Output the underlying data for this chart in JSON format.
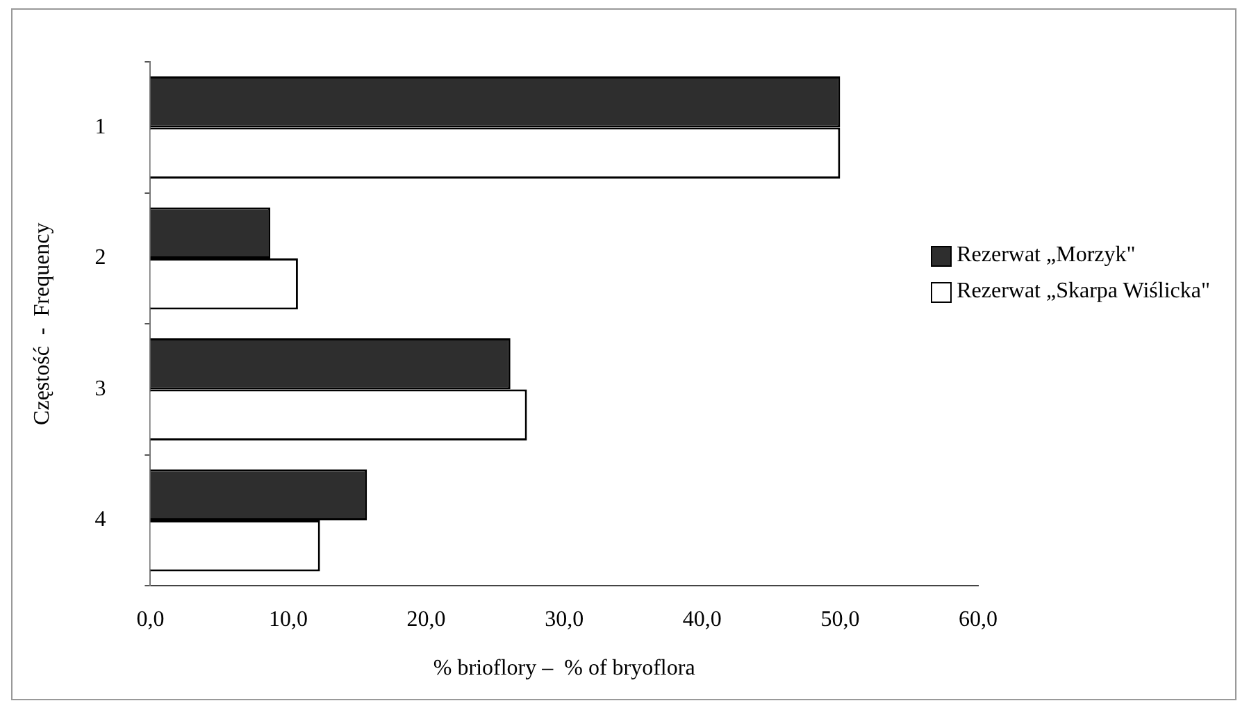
{
  "chart_data": {
    "type": "bar",
    "orientation": "horizontal",
    "xlabel": "% brioflory –  % of bryoflora",
    "ylabel": "Częstość  -  Frequency",
    "categories": [
      "1",
      "2",
      "3",
      "4"
    ],
    "series": [
      {
        "name": "Rezerwat „Morzyk\"",
        "color": "#2e2e2e",
        "values": [
          50.0,
          8.7,
          26.1,
          15.7
        ]
      },
      {
        "name": "Rezerwat „Skarpa Wiślicka\"",
        "color": "#ffffff",
        "values": [
          50.0,
          10.7,
          27.3,
          12.3
        ]
      }
    ],
    "xlim": [
      0,
      60
    ],
    "xticks": [
      {
        "value": 0,
        "label": "0,0"
      },
      {
        "value": 10,
        "label": "10,0"
      },
      {
        "value": 20,
        "label": "20,0"
      },
      {
        "value": 30,
        "label": "30,0"
      },
      {
        "value": 40,
        "label": "40,0"
      },
      {
        "value": 50,
        "label": "50,0"
      },
      {
        "value": 60,
        "label": "60,0"
      }
    ],
    "grid": false,
    "legend": "right"
  }
}
